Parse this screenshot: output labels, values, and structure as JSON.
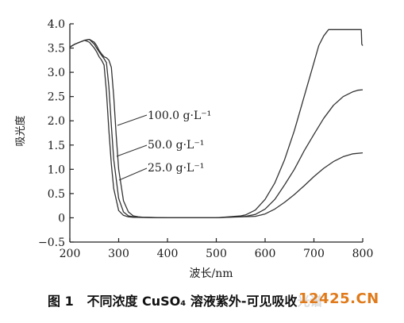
{
  "chart_data": {
    "type": "line",
    "xlabel": "波长/nm",
    "ylabel": "吸光度",
    "xlim": [
      200,
      800
    ],
    "ylim": [
      -0.5,
      4.0
    ],
    "xticks": [
      200,
      300,
      400,
      500,
      600,
      700,
      800
    ],
    "yticks": [
      -0.5,
      0,
      0.5,
      1.0,
      1.5,
      2.0,
      2.5,
      3.0,
      3.5,
      4.0
    ],
    "ytick_labels": [
      "−0.5",
      "0",
      "0.5",
      "1.0",
      "1.5",
      "2.0",
      "2.5",
      "3.0",
      "3.5",
      "4.0"
    ],
    "xtick_labels": [
      "200",
      "300",
      "400",
      "500",
      "600",
      "700",
      "800"
    ],
    "grid": false,
    "series": [
      {
        "name": "100.0 g·L⁻¹",
        "x": [
          200,
          210,
          220,
          230,
          240,
          250,
          255,
          260,
          265,
          270,
          275,
          280,
          285,
          290,
          295,
          300,
          310,
          320,
          330,
          340,
          350,
          400,
          500,
          550,
          560,
          580,
          600,
          620,
          640,
          660,
          680,
          700,
          710,
          720,
          730,
          740,
          760,
          780,
          790,
          797,
          798,
          800
        ],
        "y": [
          3.52,
          3.58,
          3.62,
          3.66,
          3.68,
          3.62,
          3.55,
          3.45,
          3.38,
          3.32,
          3.3,
          3.25,
          3.1,
          2.5,
          1.7,
          1.0,
          0.35,
          0.12,
          0.04,
          0.02,
          0.01,
          0.0,
          0.0,
          0.04,
          0.06,
          0.16,
          0.38,
          0.72,
          1.2,
          1.8,
          2.5,
          3.2,
          3.55,
          3.75,
          3.88,
          3.88,
          3.88,
          3.88,
          3.88,
          3.88,
          3.58,
          3.55
        ]
      },
      {
        "name": "50.0 g·L⁻¹",
        "x": [
          200,
          210,
          220,
          230,
          240,
          250,
          255,
          260,
          265,
          270,
          275,
          280,
          285,
          290,
          300,
          310,
          320,
          330,
          340,
          400,
          500,
          560,
          580,
          600,
          620,
          640,
          660,
          680,
          700,
          720,
          740,
          760,
          780,
          790,
          800
        ],
        "y": [
          3.52,
          3.58,
          3.62,
          3.66,
          3.68,
          3.58,
          3.5,
          3.42,
          3.35,
          3.28,
          3.2,
          2.7,
          1.9,
          1.2,
          0.4,
          0.12,
          0.04,
          0.02,
          0.01,
          0.0,
          0.0,
          0.03,
          0.07,
          0.18,
          0.38,
          0.68,
          1.0,
          1.38,
          1.72,
          2.05,
          2.32,
          2.5,
          2.6,
          2.63,
          2.64
        ]
      },
      {
        "name": "25.0 g·L⁻¹",
        "x": [
          200,
          210,
          220,
          230,
          240,
          250,
          255,
          260,
          265,
          270,
          275,
          280,
          285,
          290,
          300,
          310,
          320,
          330,
          400,
          500,
          580,
          600,
          620,
          640,
          660,
          680,
          700,
          720,
          740,
          760,
          780,
          800
        ],
        "y": [
          3.52,
          3.58,
          3.62,
          3.66,
          3.62,
          3.5,
          3.42,
          3.32,
          3.25,
          3.15,
          2.6,
          1.8,
          1.1,
          0.6,
          0.15,
          0.05,
          0.02,
          0.01,
          0.0,
          0.0,
          0.03,
          0.08,
          0.18,
          0.32,
          0.48,
          0.66,
          0.85,
          1.02,
          1.16,
          1.26,
          1.32,
          1.34
        ]
      }
    ],
    "annotations": [
      "100.0 g·L⁻¹",
      "50.0 g·L⁻¹",
      "25.0 g·L⁻¹"
    ]
  },
  "caption": {
    "label": "图 1",
    "text": "不同浓度 CuSO₄ 溶液紫外-可见吸收光谱"
  },
  "watermark": "12425.CN"
}
